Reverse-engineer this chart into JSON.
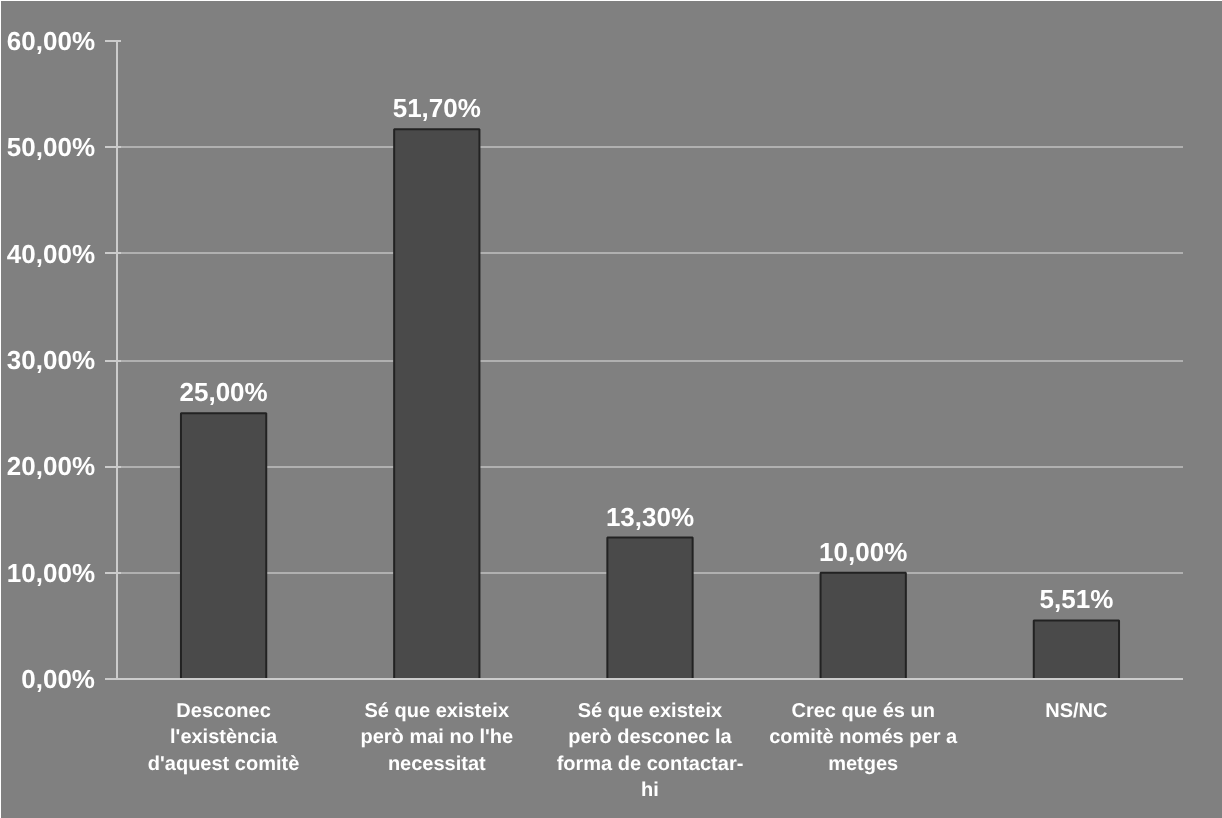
{
  "chart_data": {
    "type": "bar",
    "categories": [
      "Desconec\nl'existència\nd'aquest comitè",
      "Sé que existeix\nperò mai no l'he\nnecessitat",
      "Sé que existeix\nperò desconec la\nforma de contactar-\nhi",
      "Crec que és un\ncomitè només per a\nmetges",
      "NS/NC"
    ],
    "values": [
      25.0,
      51.7,
      13.3,
      10.0,
      5.51
    ],
    "value_labels": [
      "25,00%",
      "51,70%",
      "13,30%",
      "10,00%",
      "5,51%"
    ],
    "color": "#4a4a4a",
    "ylim": [
      0,
      60
    ],
    "yticks": [
      {
        "value": 0,
        "label": "0,00%"
      },
      {
        "value": 10,
        "label": "10,00%"
      },
      {
        "value": 20,
        "label": "20,00%"
      },
      {
        "value": 30,
        "label": "30,00%"
      },
      {
        "value": 40,
        "label": "40,00%"
      },
      {
        "value": 50,
        "label": "50,00%"
      },
      {
        "value": 60,
        "label": "60,00%"
      }
    ],
    "grid": "y"
  }
}
